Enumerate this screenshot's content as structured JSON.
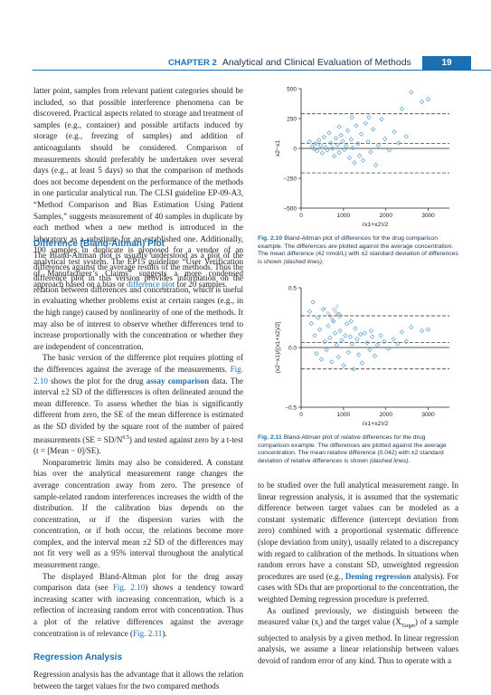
{
  "header": {
    "chapter": "CHAPTER 2",
    "title": "Analytical and Clinical Evaluation of Methods",
    "page": "19"
  },
  "watermark": "ir",
  "left_top_paragraph": "latter point, samples from relevant patient categories should be included, so that possible interference phenomena can be discovered. Practical aspects related to storage and treatment of samples (e.g., container) and possible artifacts induced by storage (e.g., freezing of samples) and addition of anticoagulants should be considered. Comparison of measurements should preferably be undertaken over several days (e.g., at least 5 days) so that the comparison of methods does not become dependent on the performance of the methods in one particular analytical run. The CLSI guideline EP-09-A3, “Method Comparison and Bias Estimation Using Patient Samples,” suggests measurement of 40 samples in duplicate by each method when a new method is introduced in the laboratory as a substitute for an established one. Additionally, 100 samples in duplicate is proposed for a vendor of an analytical test system. The EP15 guideline “User Verification of Manufacturer’s Claims” suggests a more condensed approach based on a bias or",
  "left_top_link": "difference plot",
  "left_top_end": " for 20 samples.",
  "section1_title": "Difference (Bland-Altman) Plot",
  "section1": {
    "p1": "The Bland-Altman plot is usually understood as a plot of the differences against the average results of the methods. Thus the difference plot in this version provides information on the relation between differences and concentration, which is useful in evaluating whether problems exist at certain ranges (e.g., in the high range) caused by nonlinearity of one of the methods. It may also be of interest to observe whether differences tend to increase proportionally with the concentration or whether they are independent of concentration.",
    "p2_a": "The basic version of the difference plot requires plotting of the differences against the average of the measurements.",
    "p2_ref1": "Fig. 2.10",
    "p2_b": " shows the plot for the drug ",
    "p2_link": "assay comparison",
    "p2_c": " data. The interval ±2 SD of the differences is often delineated around the mean difference. To assess whether the bias is significantly different from zero, the SE of the mean difference is estimated as the SD divided by the square root of the number of paired measurements (SE = SD/N",
    "p2_sup": "0.5",
    "p2_d": ") and tested against zero by a t-test (t = [Mean − 0]/SE).",
    "p3": "Nonparametric limits may also be considered. A constant bias over the analytical measurement range changes the average concentration away from zero. The presence of sample-related random interferences increases the width of the distribution. If the calibration bias depends on the concentration, or if the dispersion varies with the concentration, or if both occur, the relations become more complex, and the interval mean ±2 SD of the differences may not fit very well as a 95% interval throughout the analytical measurement range.",
    "p4_a": "The displayed Bland-Altman plot for the drug assay comparison data (see ",
    "p4_ref1": "Fig. 2.10",
    "p4_b": ") shows a tendency toward increasing scatter with increasing concentration, which is a reflection of increasing random error with concentration. Thus a plot of the relative differences against the average concentration is of relevance (",
    "p4_ref2": "Fig. 2.11",
    "p4_c": ")."
  },
  "section2_title": "Regression Analysis",
  "section2_p1": "Regression analysis has the advantage that it allows the relation between the target values for the two compared methods",
  "right_col": {
    "p1_a": "to be studied over the full analytical measurement range. In linear regression analysis, it is assumed that the systematic difference between target values can be modeled as a constant systematic difference (intercept deviation from zero) combined with a proportional systematic difference (slope deviation from unity), usually related to a discrepancy with regard to calibration of the methods. In situations when random errors have a constant SD, unweighted regression procedures are used (e.g., ",
    "p1_link": "Deming regression",
    "p1_b": " analysis). For cases with SDs that are proportional to the concentration, the weighted Deming regression procedure is preferred.",
    "p2_a": "As outlined previously, we distinguish between the measured value (x",
    "p2_sub1": "i",
    "p2_b": ") and the target value (X",
    "p2_sub2": "Target",
    "p2_c": ") of a sample subjected to analysis by a given method. In linear regression analysis, we assume a linear relationship between values devoid of random error of any kind. Thus to operate with a"
  },
  "fig1_caption": {
    "label": "Fig. 2.10",
    "text": " Bland-Altman plot of differences for the drug comparison example. The differences are plotted against the average concentration. The mean difference (42 nmol/L) with ±2 standard deviation of differences is shown ",
    "italic": "(dashed lines)",
    "end": "."
  },
  "fig2_caption": {
    "label": "Fig. 2.11",
    "text": " Bland-Altman plot of ",
    "italic1": "relative",
    "text2": " differences for the drug comparison example. The differences are plotted against the average concentration. The mean relative difference (0.042) with ±2 standard deviation of relative differences is shown ",
    "italic2": "(dashed lines)",
    "end": "."
  },
  "chart_data": [
    {
      "type": "scatter",
      "title": "",
      "xlabel": "(x1+x2)/2",
      "ylabel": "x2−x1",
      "xlim": [
        0,
        3500
      ],
      "ylim": [
        -500,
        500
      ],
      "xticks": [
        "0",
        "1000",
        "2000",
        "3000"
      ],
      "yticks": [
        "500",
        "250",
        "0",
        "−250",
        "−500"
      ],
      "mean_line": 42,
      "sd_lines": [
        290,
        -205
      ],
      "grid": false,
      "color": "#5fa3d8",
      "points": [
        [
          200,
          55
        ],
        [
          260,
          15
        ],
        [
          300,
          -5
        ],
        [
          340,
          40
        ],
        [
          380,
          -20
        ],
        [
          420,
          70
        ],
        [
          460,
          25
        ],
        [
          500,
          -40
        ],
        [
          540,
          95
        ],
        [
          580,
          10
        ],
        [
          620,
          -15
        ],
        [
          660,
          130
        ],
        [
          700,
          45
        ],
        [
          740,
          0
        ],
        [
          780,
          -65
        ],
        [
          820,
          85
        ],
        [
          860,
          30
        ],
        [
          900,
          -35
        ],
        [
          940,
          110
        ],
        [
          980,
          60
        ],
        [
          1020,
          -10
        ],
        [
          1060,
          20
        ],
        [
          1100,
          150
        ],
        [
          1140,
          -80
        ],
        [
          1180,
          75
        ],
        [
          1220,
          5
        ],
        [
          1260,
          -120
        ],
        [
          1300,
          190
        ],
        [
          1340,
          40
        ],
        [
          1380,
          -60
        ],
        [
          1420,
          120
        ],
        [
          1460,
          -100
        ],
        [
          1520,
          210
        ],
        [
          1580,
          55
        ],
        [
          1640,
          -30
        ],
        [
          1700,
          160
        ],
        [
          1760,
          -140
        ],
        [
          1820,
          25
        ],
        [
          1900,
          245
        ],
        [
          1980,
          80
        ],
        [
          2080,
          -15
        ],
        [
          2200,
          140
        ],
        [
          2300,
          45
        ],
        [
          2380,
          330
        ],
        [
          2480,
          100
        ],
        [
          2600,
          470
        ],
        [
          2850,
          390
        ],
        [
          3000,
          410
        ],
        [
          1200,
          260
        ],
        [
          1600,
          260
        ],
        [
          900,
          180
        ]
      ]
    },
    {
      "type": "scatter",
      "title": "",
      "xlabel": "(x1+x2)/2",
      "ylabel": "(x2−x1)/[(x1+x2)/2]",
      "xlim": [
        0,
        3500
      ],
      "ylim": [
        -0.5,
        0.5
      ],
      "xticks": [
        "0",
        "1000",
        "2000",
        "3000"
      ],
      "yticks": [
        "0.5",
        "0.0",
        "−0.5"
      ],
      "mean_line": 0.042,
      "sd_lines": [
        0.265,
        -0.18
      ],
      "grid": false,
      "color": "#5fa3d8",
      "points": [
        [
          200,
          0.3
        ],
        [
          240,
          0.2
        ],
        [
          280,
          0.38
        ],
        [
          320,
          0.1
        ],
        [
          360,
          -0.05
        ],
        [
          400,
          0.25
        ],
        [
          440,
          0.15
        ],
        [
          480,
          -0.1
        ],
        [
          520,
          0.32
        ],
        [
          560,
          0.05
        ],
        [
          600,
          -0.02
        ],
        [
          640,
          0.18
        ],
        [
          680,
          0.08
        ],
        [
          720,
          -0.12
        ],
        [
          760,
          0.22
        ],
        [
          800,
          0.12
        ],
        [
          840,
          0.02
        ],
        [
          880,
          -0.08
        ],
        [
          920,
          0.14
        ],
        [
          960,
          0.06
        ],
        [
          1000,
          -0.15
        ],
        [
          1040,
          0.1
        ],
        [
          1080,
          0.2
        ],
        [
          1120,
          -0.04
        ],
        [
          1160,
          0.09
        ],
        [
          1200,
          0.03
        ],
        [
          1240,
          -0.18
        ],
        [
          1280,
          0.16
        ],
        [
          1320,
          0.07
        ],
        [
          1360,
          -0.06
        ],
        [
          1400,
          0.11
        ],
        [
          1440,
          -0.13
        ],
        [
          1500,
          0.12
        ],
        [
          1560,
          0.04
        ],
        [
          1620,
          -0.02
        ],
        [
          1680,
          0.09
        ],
        [
          1740,
          -0.07
        ],
        [
          1800,
          0.02
        ],
        [
          1880,
          0.1
        ],
        [
          1960,
          0.05
        ],
        [
          2060,
          -0.01
        ],
        [
          2180,
          0.07
        ],
        [
          2280,
          0.03
        ],
        [
          2380,
          0.13
        ],
        [
          2480,
          0.05
        ],
        [
          2600,
          0.17
        ],
        [
          2850,
          0.14
        ],
        [
          3000,
          0.15
        ],
        [
          1180,
          0.22
        ],
        [
          1650,
          0.14
        ],
        [
          900,
          0.28
        ]
      ]
    }
  ]
}
